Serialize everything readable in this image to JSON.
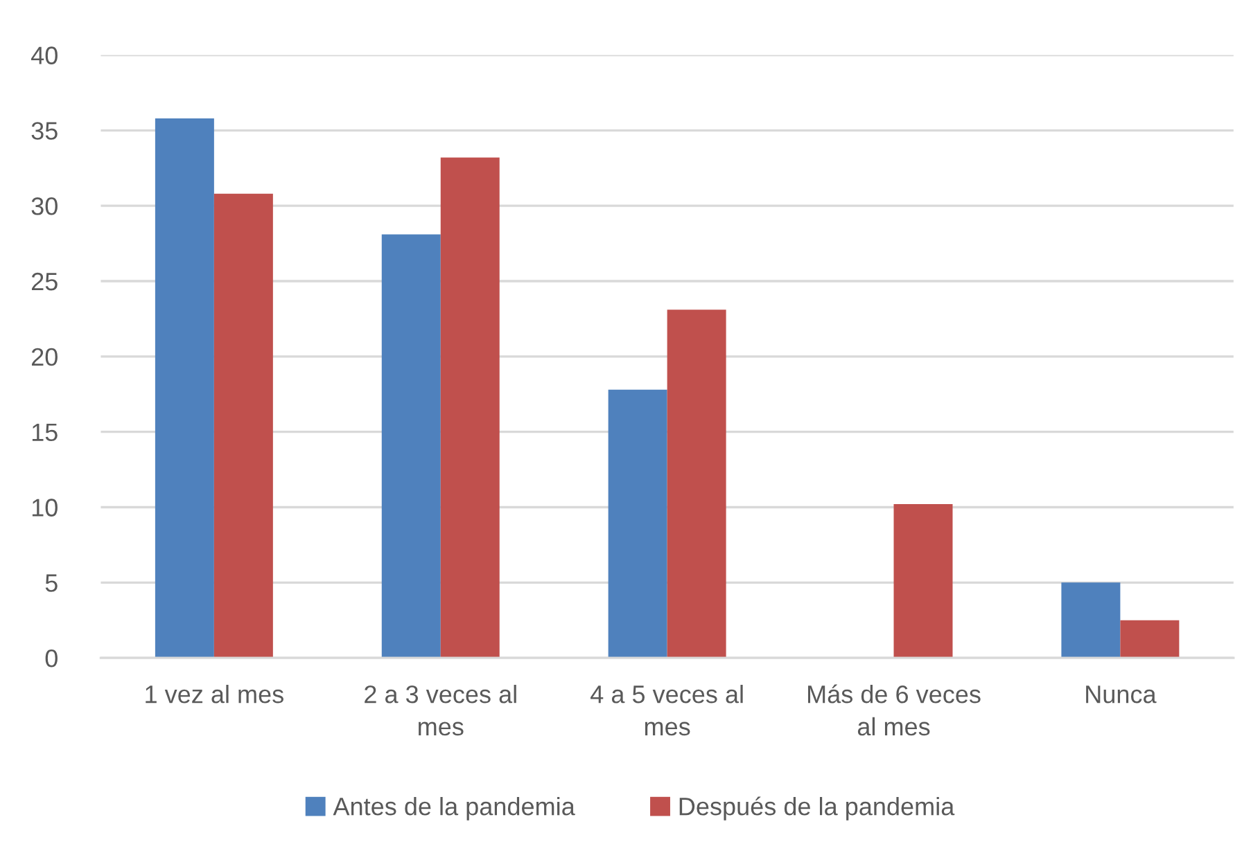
{
  "chart_data": {
    "type": "bar",
    "categories": [
      "1 vez al mes",
      "2 a 3 veces al mes",
      "4 a 5 veces al mes",
      "Más de 6 veces al mes",
      "Nunca"
    ],
    "series": [
      {
        "name": "Antes de la pandemia",
        "color": "#4f81bd",
        "values": [
          35.8,
          28.1,
          17.8,
          0,
          5.0
        ]
      },
      {
        "name": "Después de la pandemia",
        "color": "#c0504d",
        "values": [
          30.8,
          33.2,
          23.1,
          10.2,
          2.5
        ]
      }
    ],
    "ylim": [
      0,
      40
    ],
    "yticks": [
      0,
      5,
      10,
      15,
      20,
      25,
      30,
      35,
      40
    ],
    "grid": "y",
    "legend": "bottom"
  }
}
